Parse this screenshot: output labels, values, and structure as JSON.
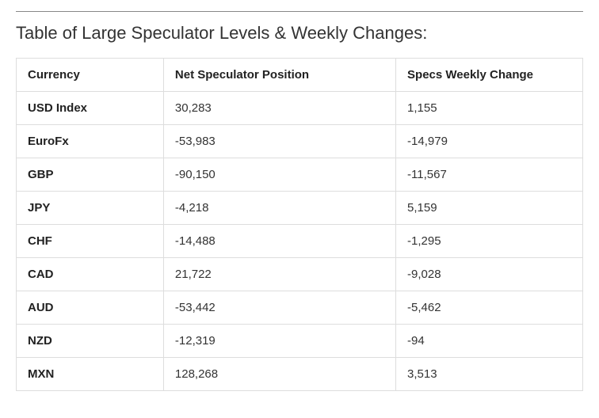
{
  "title_text": "Table of Large Speculator Levels & Weekly Changes:",
  "table": {
    "type": "table",
    "columns": [
      "Currency",
      "Net Speculator Position",
      "Specs Weekly Change"
    ],
    "column_widths_pct": [
      26,
      41,
      33
    ],
    "header_font_weight": 700,
    "header_fontsize": 15,
    "cell_fontsize": 15,
    "border_color": "#dddddd",
    "header_color": "#222222",
    "cell_color": "#333333",
    "currency_cell_font_weight": 700,
    "rows": [
      {
        "currency": "USD Index",
        "position": "30,283",
        "change": "1,155"
      },
      {
        "currency": "EuroFx",
        "position": "-53,983",
        "change": "-14,979"
      },
      {
        "currency": "GBP",
        "position": "-90,150",
        "change": "-11,567"
      },
      {
        "currency": "JPY",
        "position": "-4,218",
        "change": "5,159"
      },
      {
        "currency": "CHF",
        "position": "-14,488",
        "change": "-1,295"
      },
      {
        "currency": "CAD",
        "position": "21,722",
        "change": "-9,028"
      },
      {
        "currency": "AUD",
        "position": "-53,442",
        "change": "-5,462"
      },
      {
        "currency": "NZD",
        "position": "-12,319",
        "change": "-94"
      },
      {
        "currency": "MXN",
        "position": "128,268",
        "change": "3,513"
      }
    ]
  },
  "title_style": {
    "fontsize": 22,
    "color": "#333333",
    "font_weight": 400
  },
  "top_rule_color": "#888888",
  "background_color": "#ffffff"
}
